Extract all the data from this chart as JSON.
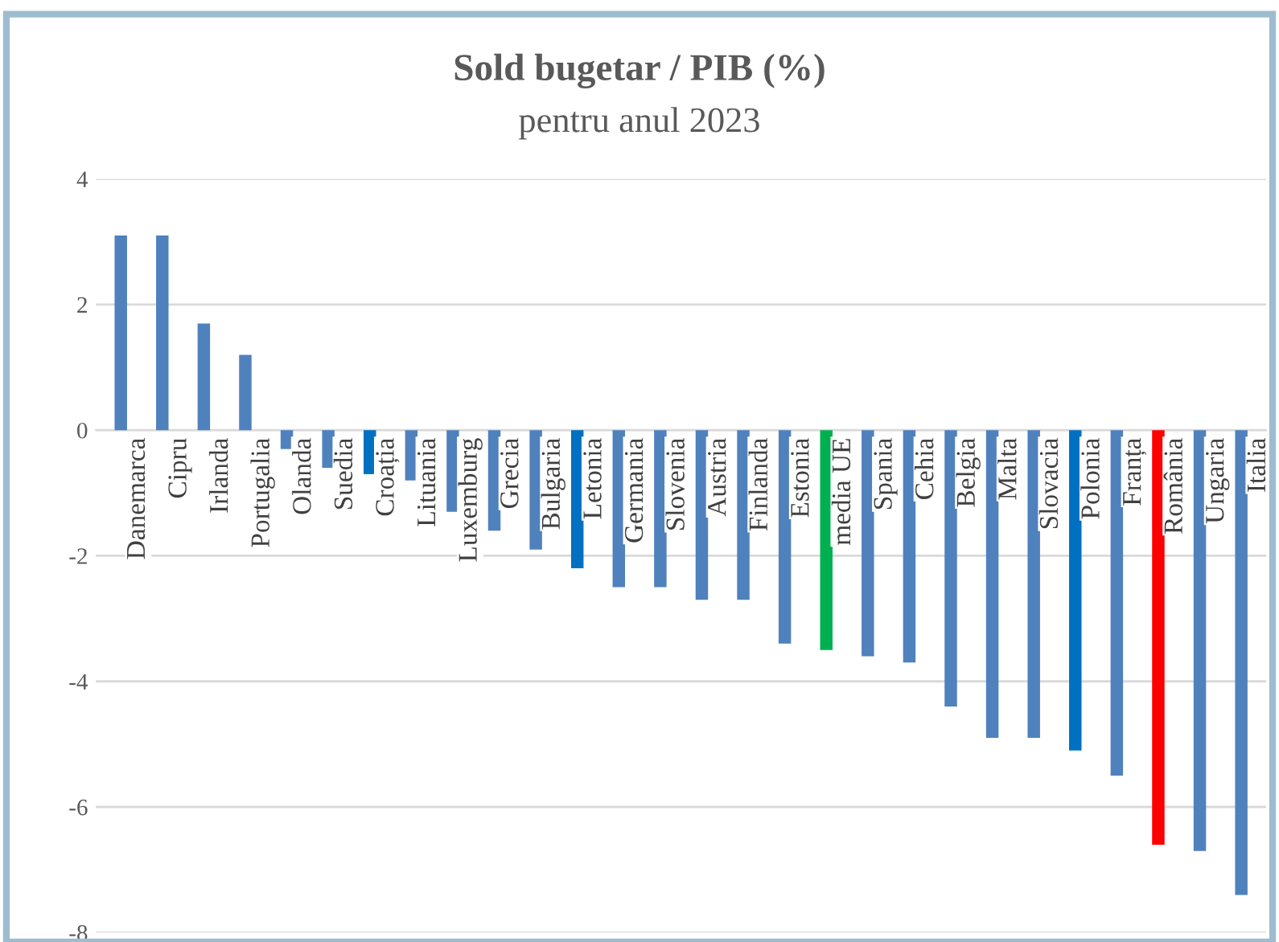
{
  "chart_data": {
    "type": "bar",
    "title": "Sold bugetar / PIB (%)",
    "subtitle": "pentru anul 2023",
    "categories": [
      "Danemarca",
      "Cipru",
      "Irlanda",
      "Portugalia",
      "Olanda",
      "Suedia",
      "Croația",
      "Lituania",
      "Luxemburg",
      "Grecia",
      "Bulgaria",
      "Letonia",
      "Germania",
      "Slovenia",
      "Austria",
      "Finlanda",
      "Estonia",
      "media UE",
      "Spania",
      "Cehia",
      "Belgia",
      "Malta",
      "Slovacia",
      "Polonia",
      "Franța",
      "România",
      "Ungaria",
      "Italia"
    ],
    "values": [
      3.1,
      3.1,
      1.7,
      1.2,
      -0.3,
      -0.6,
      -0.7,
      -0.8,
      -1.3,
      -1.6,
      -1.9,
      -2.2,
      -2.5,
      -2.5,
      -2.7,
      -2.7,
      -3.4,
      -3.5,
      -3.6,
      -3.7,
      -4.4,
      -4.9,
      -4.9,
      -5.1,
      -5.5,
      -6.6,
      -6.7,
      -7.4
    ],
    "colors": [
      "#4f81bd",
      "#4f81bd",
      "#4f81bd",
      "#4f81bd",
      "#4f81bd",
      "#4f81bd",
      "#0070c0",
      "#4f81bd",
      "#4f81bd",
      "#4f81bd",
      "#4f81bd",
      "#0070c0",
      "#4f81bd",
      "#4f81bd",
      "#4f81bd",
      "#4f81bd",
      "#4f81bd",
      "#00b050",
      "#4f81bd",
      "#4f81bd",
      "#4f81bd",
      "#4f81bd",
      "#4f81bd",
      "#0070c0",
      "#4f81bd",
      "#ff0000",
      "#4f81bd",
      "#4f81bd"
    ],
    "ylim": [
      -8,
      4
    ],
    "yticks": [
      -8,
      -6,
      -4,
      -2,
      0,
      2,
      4
    ],
    "grid": "y"
  }
}
